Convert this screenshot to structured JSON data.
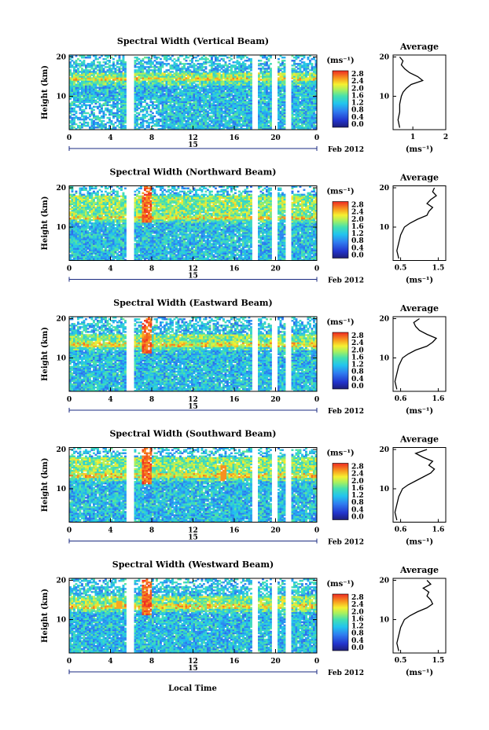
{
  "figure": {
    "x_axis_label": "Local Time",
    "date_label": "Feb 2012",
    "day_label": "15",
    "unit_label": "(ms⁻¹)",
    "average_title": "Average",
    "y_axis_label": "Height (km)"
  },
  "chart_data": [
    {
      "type": "heatmap",
      "title": "Spectral Width (Vertical Beam)",
      "xlabel": "",
      "ylabel": "Height (km)",
      "x_ticks": [
        "0",
        "4",
        "8",
        "12",
        "16",
        "20",
        "0"
      ],
      "y_ticks": [
        "20",
        "10"
      ],
      "xlim": [
        0,
        24
      ],
      "ylim": [
        1.5,
        20.5
      ],
      "colorbar": {
        "label": "(ms⁻¹)",
        "ticks": [
          "2.8",
          "2.4",
          "2.0",
          "1.6",
          "1.2",
          "0.8",
          "0.4",
          "0.0"
        ],
        "range": [
          0,
          2.8
        ]
      },
      "data_gaps_hours": [
        [
          5.6,
          6.3
        ],
        [
          17.7,
          18.3
        ],
        [
          19.6,
          20.2
        ],
        [
          21.0,
          21.6
        ]
      ],
      "high_width_band_km": [
        14,
        16
      ],
      "average_profile": {
        "xlabel": "(ms⁻¹)",
        "x_ticks": [
          "1",
          "2"
        ],
        "xlim": [
          0.4,
          2.0
        ],
        "y_ticks": [
          "20",
          "10"
        ],
        "height_km": [
          2,
          4,
          6,
          8,
          10,
          11,
          12,
          13,
          14,
          15,
          16,
          17,
          18,
          19,
          20
        ],
        "width_ms": [
          0.6,
          0.55,
          0.6,
          0.6,
          0.65,
          0.7,
          0.8,
          0.95,
          1.3,
          1.15,
          0.9,
          0.75,
          0.65,
          0.7,
          0.6
        ]
      }
    },
    {
      "type": "heatmap",
      "title": "Spectral Width (Northward Beam)",
      "xlabel": "",
      "ylabel": "Height (km)",
      "x_ticks": [
        "0",
        "4",
        "8",
        "12",
        "16",
        "20",
        "0"
      ],
      "y_ticks": [
        "20",
        "10"
      ],
      "xlim": [
        0,
        24
      ],
      "ylim": [
        1.5,
        20.5
      ],
      "colorbar": {
        "label": "(ms⁻¹)",
        "ticks": [
          "2.8",
          "2.4",
          "2.0",
          "1.6",
          "1.2",
          "0.8",
          "0.4",
          "0.0"
        ],
        "range": [
          0,
          2.8
        ]
      },
      "data_gaps_hours": [
        [
          5.6,
          6.3
        ],
        [
          17.7,
          18.3
        ],
        [
          19.6,
          20.2
        ],
        [
          21.0,
          21.6
        ]
      ],
      "high_width_band_km": [
        12,
        18
      ],
      "average_profile": {
        "xlabel": "(ms⁻¹)",
        "x_ticks": [
          "0.5",
          "1.5"
        ],
        "xlim": [
          0.3,
          1.7
        ],
        "y_ticks": [
          "20",
          "10"
        ],
        "height_km": [
          2,
          4,
          6,
          8,
          10,
          11,
          12,
          13,
          14,
          15,
          16,
          17,
          18,
          19,
          20
        ],
        "width_ms": [
          0.45,
          0.4,
          0.45,
          0.5,
          0.6,
          0.75,
          0.95,
          1.2,
          1.25,
          1.35,
          1.2,
          1.3,
          1.45,
          1.35,
          1.4
        ]
      }
    },
    {
      "type": "heatmap",
      "title": "Spectral Width (Eastward Beam)",
      "xlabel": "",
      "ylabel": "Height (km)",
      "x_ticks": [
        "0",
        "4",
        "8",
        "12",
        "16",
        "20",
        "0"
      ],
      "y_ticks": [
        "20",
        "10"
      ],
      "xlim": [
        0,
        24
      ],
      "ylim": [
        1.5,
        20.5
      ],
      "colorbar": {
        "label": "(ms⁻¹)",
        "ticks": [
          "2.8",
          "2.4",
          "2.0",
          "1.6",
          "1.2",
          "0.8",
          "0.4",
          "0.0"
        ],
        "range": [
          0,
          2.8
        ]
      },
      "data_gaps_hours": [
        [
          5.6,
          6.3
        ],
        [
          17.7,
          18.3
        ],
        [
          19.6,
          20.2
        ],
        [
          21.0,
          21.6
        ]
      ],
      "high_width_band_km": [
        13,
        16
      ],
      "average_profile": {
        "xlabel": "(ms⁻¹)",
        "x_ticks": [
          "0.6",
          "1.6"
        ],
        "xlim": [
          0.4,
          1.8
        ],
        "y_ticks": [
          "20",
          "10"
        ],
        "height_km": [
          2,
          4,
          6,
          8,
          10,
          11,
          12,
          13,
          14,
          15,
          16,
          17,
          18,
          19,
          20
        ],
        "width_ms": [
          0.5,
          0.45,
          0.5,
          0.55,
          0.65,
          0.8,
          1.0,
          1.3,
          1.45,
          1.55,
          1.3,
          1.1,
          1.0,
          0.95,
          1.1
        ]
      }
    },
    {
      "type": "heatmap",
      "title": "Spectral Width (Southward Beam)",
      "xlabel": "",
      "ylabel": "Height (km)",
      "x_ticks": [
        "0",
        "4",
        "8",
        "12",
        "16",
        "20",
        "0"
      ],
      "y_ticks": [
        "20",
        "10"
      ],
      "xlim": [
        0,
        24
      ],
      "ylim": [
        1.5,
        20.5
      ],
      "colorbar": {
        "label": "(ms⁻¹)",
        "ticks": [
          "2.8",
          "2.4",
          "2.0",
          "1.6",
          "1.2",
          "0.8",
          "0.4",
          "0.0"
        ],
        "range": [
          0,
          2.8
        ]
      },
      "data_gaps_hours": [
        [
          5.6,
          6.3
        ],
        [
          17.7,
          18.3
        ],
        [
          19.6,
          20.2
        ],
        [
          21.0,
          21.6
        ]
      ],
      "high_width_band_km": [
        13,
        18
      ],
      "average_profile": {
        "xlabel": "(ms⁻¹)",
        "x_ticks": [
          "0.6",
          "1.6"
        ],
        "xlim": [
          0.4,
          1.8
        ],
        "y_ticks": [
          "20",
          "10"
        ],
        "height_km": [
          2,
          4,
          6,
          8,
          10,
          11,
          12,
          13,
          14,
          15,
          16,
          17,
          18,
          19,
          20
        ],
        "width_ms": [
          0.5,
          0.45,
          0.5,
          0.55,
          0.65,
          0.8,
          1.0,
          1.2,
          1.4,
          1.5,
          1.35,
          1.45,
          1.2,
          1.0,
          1.3
        ]
      }
    },
    {
      "type": "heatmap",
      "title": "Spectral Width (Westward Beam)",
      "xlabel": "Local Time",
      "ylabel": "Height (km)",
      "x_ticks": [
        "0",
        "4",
        "8",
        "12",
        "16",
        "20",
        "0"
      ],
      "y_ticks": [
        "20",
        "10"
      ],
      "xlim": [
        0,
        24
      ],
      "ylim": [
        1.5,
        20.5
      ],
      "colorbar": {
        "label": "(ms⁻¹)",
        "ticks": [
          "2.8",
          "2.4",
          "2.0",
          "1.6",
          "1.2",
          "0.8",
          "0.4",
          "0.0"
        ],
        "range": [
          0,
          2.8
        ]
      },
      "data_gaps_hours": [
        [
          5.6,
          6.3
        ],
        [
          17.7,
          18.3
        ],
        [
          19.6,
          20.2
        ],
        [
          21.0,
          21.6
        ]
      ],
      "high_width_band_km": [
        13,
        16
      ],
      "average_profile": {
        "xlabel": "(ms⁻¹)",
        "x_ticks": [
          "0.5",
          "1.5"
        ],
        "xlim": [
          0.3,
          1.7
        ],
        "y_ticks": [
          "20",
          "10"
        ],
        "height_km": [
          2,
          4,
          6,
          8,
          10,
          11,
          12,
          13,
          14,
          15,
          16,
          17,
          18,
          19,
          20
        ],
        "width_ms": [
          0.45,
          0.4,
          0.45,
          0.5,
          0.6,
          0.75,
          0.95,
          1.2,
          1.35,
          1.3,
          1.2,
          1.25,
          1.1,
          1.3,
          1.2
        ]
      }
    }
  ]
}
